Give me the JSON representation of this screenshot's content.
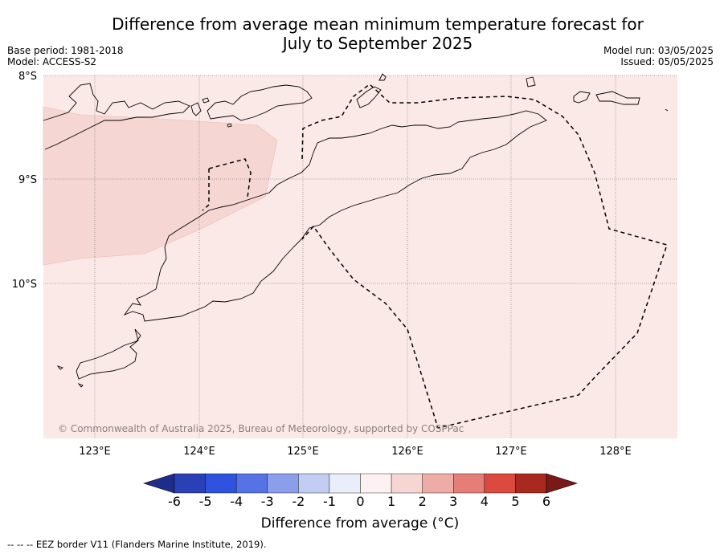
{
  "title_line1": "Difference from average mean minimum temperature forecast for",
  "title_line2": "July to September 2025",
  "meta": {
    "base_period": "Base period: 1981-2018",
    "model": "Model: ACCESS-S2",
    "model_run": "Model run: 03/05/2025",
    "issued": "Issued: 05/05/2025"
  },
  "map": {
    "lat_labels": [
      "8°S",
      "9°S",
      "10°S"
    ],
    "lon_labels": [
      "123°E",
      "124°E",
      "125°E",
      "126°E",
      "127°E",
      "128°E"
    ],
    "attribution": "© Commonwealth of Australia 2025, Bureau of Meteorology, supported by COSPPac",
    "base_anomaly_color": "#fbe9e7",
    "warm_anomaly_color": "#f5d6d3",
    "land_outline_color": "#000000",
    "eez_style": "dashed"
  },
  "colorbar": {
    "ticks": [
      "-6",
      "-5",
      "-4",
      "-3",
      "-2",
      "-1",
      "0",
      "1",
      "2",
      "3",
      "4",
      "5",
      "6"
    ],
    "colors": [
      "#1f2d8a",
      "#2a40b5",
      "#2f52df",
      "#5673e5",
      "#8a9ee9",
      "#c2cdf3",
      "#eaeefa",
      "#fdf2f1",
      "#f5d6d2",
      "#eeaca6",
      "#e57e76",
      "#dc4a3f",
      "#a8291f",
      "#7a1a16"
    ],
    "label": "Difference from average (°C)"
  },
  "footer": "--  --  -- EEZ border V11 (Flanders Marine Institute, 2019)."
}
